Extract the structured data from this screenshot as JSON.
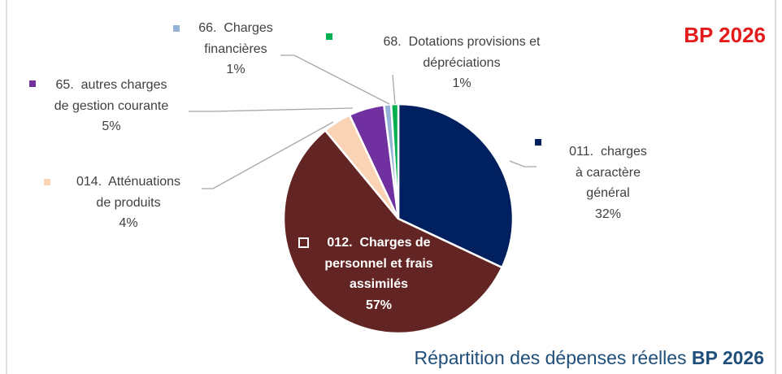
{
  "chart_data": {
    "type": "pie",
    "title": "BP 2026",
    "caption": "Répartition des dépenses réelles",
    "caption_bold": "BP 2026",
    "categories": [
      "011.  charges\nà caractère\ngénéral",
      "012.  Charges de\npersonnel et frais\nassimilés",
      "014.  Atténuations\nde produits",
      "65.  autres charges\nde gestion courante",
      "66.  Charges\nfinancières",
      "68.  Dotations provisions et\ndépréciations"
    ],
    "values": [
      32,
      57,
      4,
      5,
      1,
      1
    ],
    "value_labels": [
      "32%",
      "57%",
      "4%",
      "5%",
      "1%",
      "1%"
    ],
    "colors": [
      "#002060",
      "#632523",
      "#FAD3B4",
      "#7030A0",
      "#95B3D7",
      "#00B050"
    ]
  }
}
